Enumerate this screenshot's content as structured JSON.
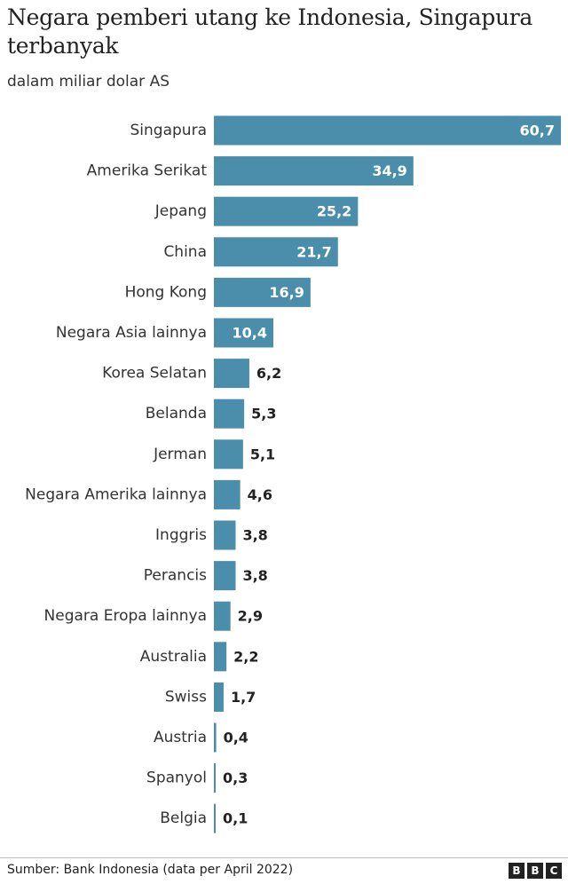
{
  "header": {
    "title": "Negara pemberi utang ke Indonesia, Singapura terbanyak",
    "subtitle": "dalam miliar dolar AS"
  },
  "footer": {
    "source": "Sumber: Bank Indonesia (data per April 2022)",
    "logo_letters": [
      "B",
      "B",
      "C"
    ]
  },
  "colors": {
    "bar": "#4a8eab",
    "value_inside": "#ffffff",
    "value_outside": "#222222"
  },
  "chart_data": {
    "type": "bar",
    "orientation": "horizontal",
    "categories": [
      "Singapura",
      "Amerika Serikat",
      "Jepang",
      "China",
      "Hong Kong",
      "Negara Asia lainnya",
      "Korea Selatan",
      "Belanda",
      "Jerman",
      "Negara Amerika lainnya",
      "Inggris",
      "Perancis",
      "Negara Eropa lainnya",
      "Australia",
      "Swiss",
      "Austria",
      "Spanyol",
      "Belgia"
    ],
    "values": [
      60.7,
      34.9,
      25.2,
      21.7,
      16.9,
      10.4,
      6.2,
      5.3,
      5.1,
      4.6,
      3.8,
      3.8,
      2.9,
      2.2,
      1.7,
      0.4,
      0.3,
      0.1
    ],
    "value_labels": [
      "60,7",
      "34,9",
      "25,2",
      "21,7",
      "16,9",
      "10,4",
      "6,2",
      "5,3",
      "5,1",
      "4,6",
      "3,8",
      "3,8",
      "2,9",
      "2,2",
      "1,7",
      "0,4",
      "0,3",
      "0,1"
    ],
    "title": "Negara pemberi utang ke Indonesia, Singapura terbanyak",
    "subtitle": "dalam miliar dolar AS",
    "xlabel": "",
    "ylabel": "",
    "xlim": [
      0,
      60.7
    ],
    "grid": false,
    "legend": "none"
  }
}
